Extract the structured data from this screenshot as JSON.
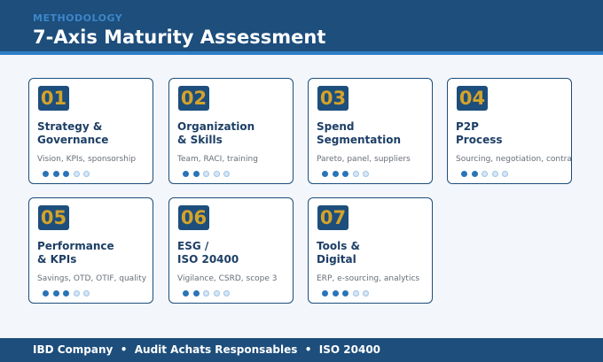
{
  "header": {
    "eyebrow": "METHODOLOGY",
    "title": "7-Axis Maturity Assessment"
  },
  "colors": {
    "primary": "#1d4e7c",
    "accent": "#2d7fc4",
    "number_gold": "#d4a32a",
    "dot_filled": "#2a74b8",
    "dot_empty": "#d6e6f5"
  },
  "cards": [
    {
      "num": "01",
      "title": "Strategy &\nGovernance",
      "desc": "Vision, KPIs, sponsorship",
      "level": 3,
      "max": 5
    },
    {
      "num": "02",
      "title": "Organization\n& Skills",
      "desc": "Team, RACI, training",
      "level": 2,
      "max": 5
    },
    {
      "num": "03",
      "title": "Spend\nSegmentation",
      "desc": "Pareto, panel, suppliers",
      "level": 3,
      "max": 5
    },
    {
      "num": "04",
      "title": "P2P\nProcess",
      "desc": "Sourcing, negotiation, contract",
      "level": 2,
      "max": 5
    },
    {
      "num": "05",
      "title": "Performance\n& KPIs",
      "desc": "Savings, OTD, OTIF, quality",
      "level": 3,
      "max": 5
    },
    {
      "num": "06",
      "title": "ESG /\nISO 20400",
      "desc": "Vigilance, CSRD, scope 3",
      "level": 2,
      "max": 5
    },
    {
      "num": "07",
      "title": "Tools &\nDigital",
      "desc": "ERP, e-sourcing, analytics",
      "level": 3,
      "max": 5
    }
  ],
  "footer": {
    "text": "IBD Company  •  Audit Achats Responsables  •  ISO 20400"
  }
}
